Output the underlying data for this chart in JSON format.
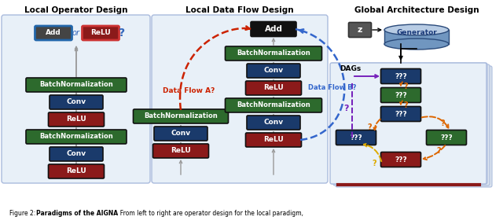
{
  "title_left": "Local Operator Design",
  "title_mid": "Local Data Flow Design",
  "title_right": "Global Architecture Design",
  "caption_normal": "Figure 2: ",
  "caption_bold": "Paradigms of the AIGNA",
  "caption_rest": ". From left to right are operator design for the local paradigm,",
  "colors": {
    "dark_green": "#2d6a2d",
    "dark_blue": "#1a3a6b",
    "dark_red": "#8b1a1a",
    "black_node": "#111111",
    "dark_gray": "#555555",
    "light_blue_bg": "#e8f0f8",
    "white": "#ffffff",
    "red_flow": "#cc2200",
    "blue_flow": "#3366cc",
    "orange_flow": "#dd6600",
    "purple_flow": "#7722bb",
    "yellow_flow": "#ddaa00",
    "gen_top": "#b8cce4",
    "gen_body": "#7096c0",
    "gen_edge": "#2a4a7a"
  }
}
